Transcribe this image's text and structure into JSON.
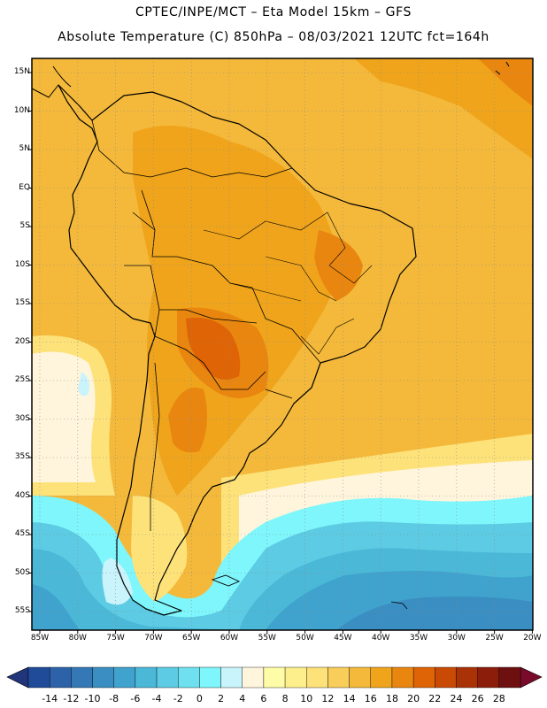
{
  "header": {
    "line1": "CPTEC/INPE/MCT –  Eta Model 15km – GFS",
    "line2": "Absolute Temperature (C) 850hPa – 08/03/2021 12UTC fct=164h"
  },
  "map": {
    "region": "South America",
    "variable": "Absolute Temperature",
    "units": "C",
    "level": "850hPa",
    "lat_labels": [
      "15N",
      "10N",
      "5N",
      "EQ",
      "5S",
      "10S",
      "15S",
      "20S",
      "25S",
      "30S",
      "35S",
      "40S",
      "45S",
      "50S",
      "55S"
    ],
    "lon_labels": [
      "85W",
      "80W",
      "75W",
      "70W",
      "65W",
      "60W",
      "55W",
      "50W",
      "45W",
      "40W",
      "35W",
      "30W",
      "25W",
      "20W"
    ]
  },
  "colorbar": {
    "ticks": [
      "-14",
      "-12",
      "-10",
      "-8",
      "-6",
      "-4",
      "-2",
      "0",
      "2",
      "4",
      "6",
      "8",
      "10",
      "12",
      "14",
      "16",
      "18",
      "20",
      "22",
      "24",
      "26",
      "28"
    ],
    "colors": [
      "#1f4b99",
      "#2d62a8",
      "#3478b5",
      "#3a8ec2",
      "#3fa3cd",
      "#4bb8d8",
      "#5ccbe3",
      "#6fe0ef",
      "#7ef6fb",
      "#c9f4fb",
      "#fff5dc",
      "#fffca8",
      "#fdf08c",
      "#fde27a",
      "#f8cd5a",
      "#f4b93a",
      "#efa41b",
      "#e9860f",
      "#de6405",
      "#c84a05",
      "#aa3207",
      "#8c1d0a",
      "#6e1010"
    ],
    "low_color": "#20357a",
    "high_color": "#7a0a2a"
  }
}
